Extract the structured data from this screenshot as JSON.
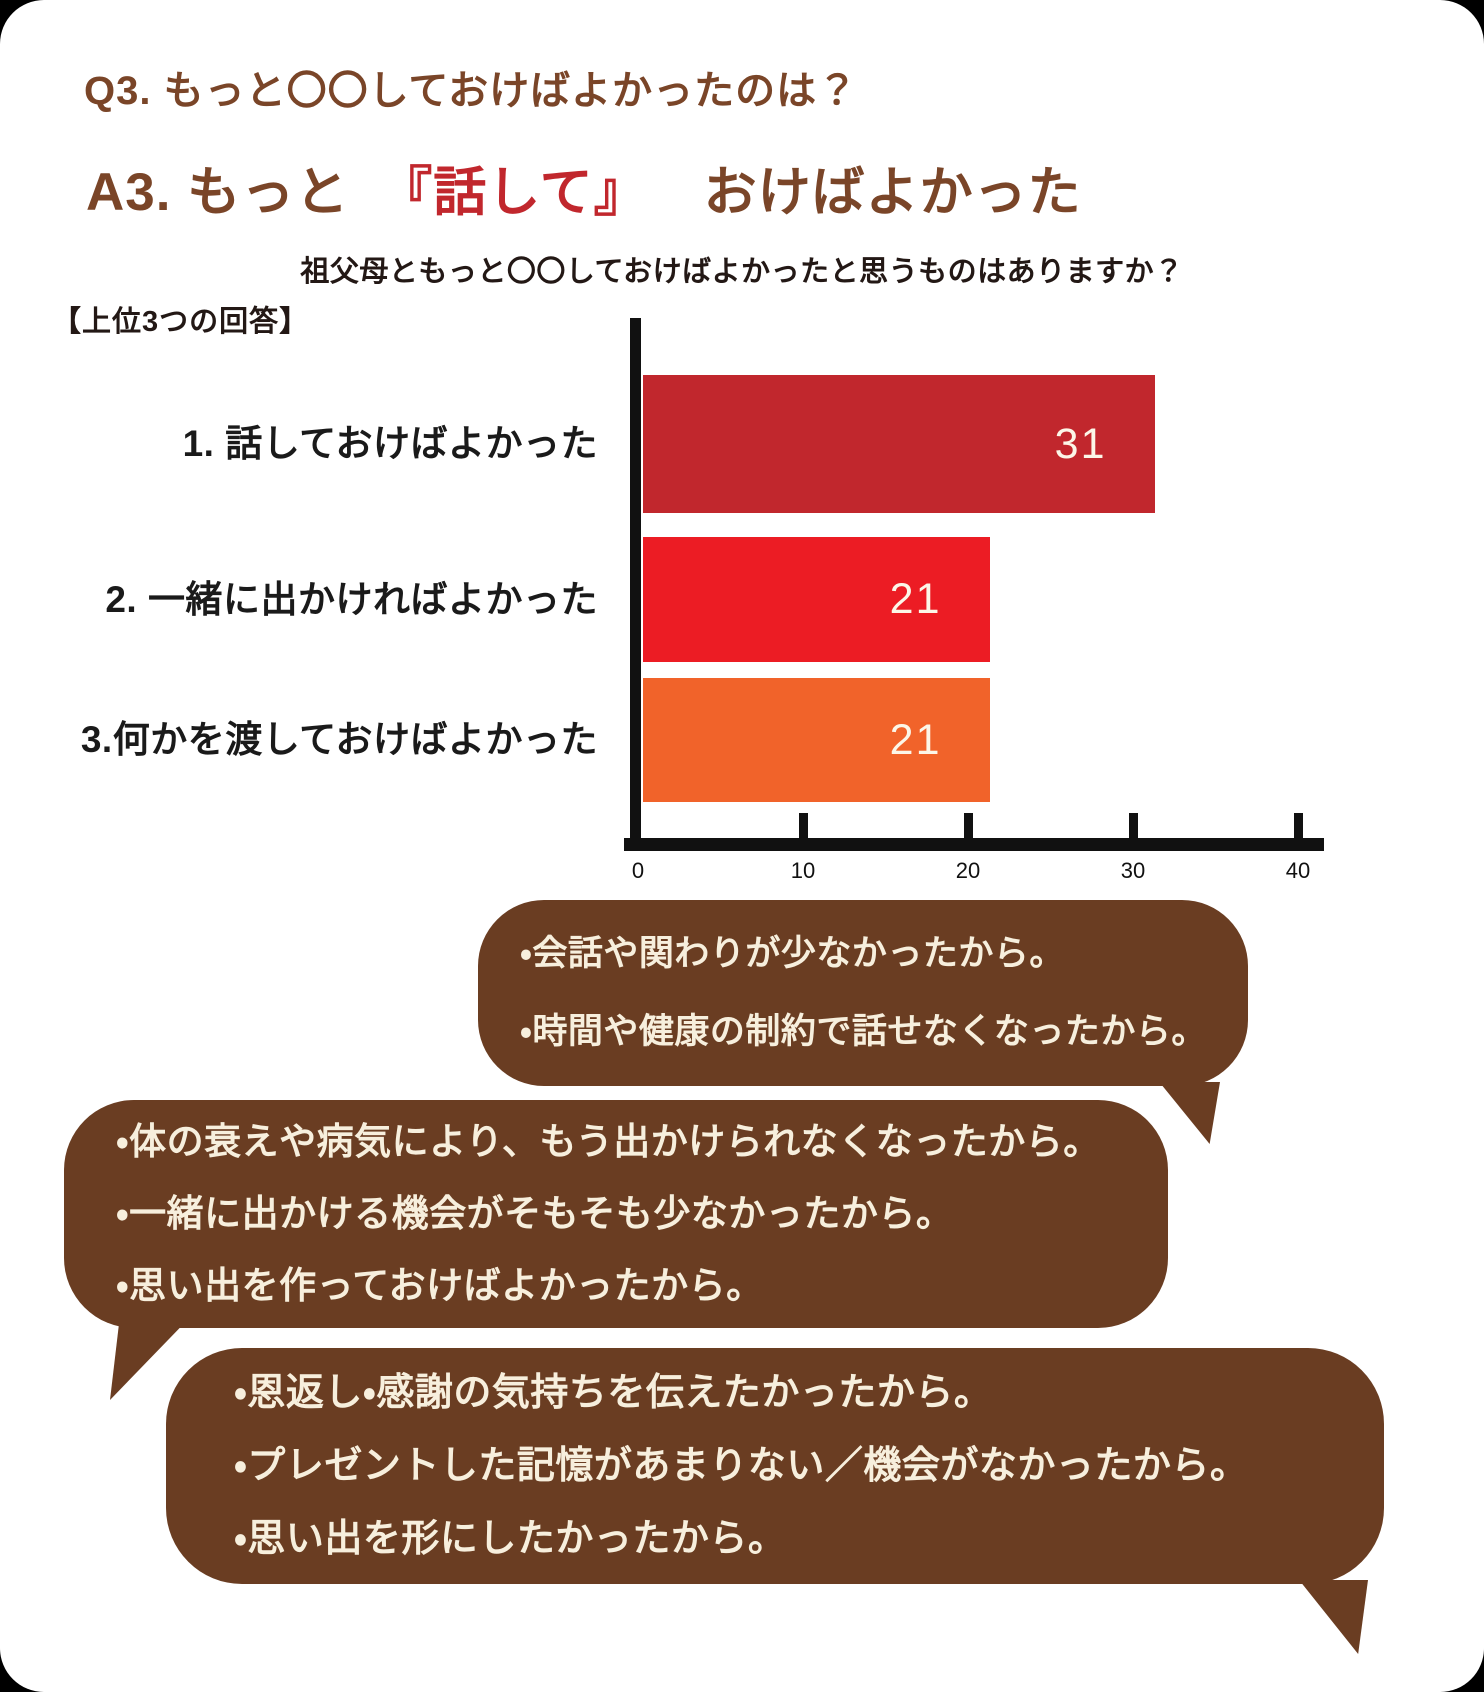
{
  "header": {
    "question": "Q3. もっと〇〇しておけばよかったのは？",
    "answer_prefix": "A3. もっと",
    "answer_highlight": "『話して』",
    "answer_suffix": "おけばよかった"
  },
  "chart_data": {
    "type": "bar",
    "orientation": "horizontal",
    "title": "祖父母ともっと〇〇しておけばよかったと思うものはありますか？",
    "note": "【上位3つの回答】",
    "categories": [
      "1. 話しておけばよかった",
      "2. 一緒に出かければよかった",
      "3.何かを渡しておけばよかった"
    ],
    "values": [
      31,
      21,
      21
    ],
    "bar_colors": [
      "#c1272d",
      "#ec1c24",
      "#f1632a"
    ],
    "xlim": [
      0,
      40
    ],
    "x_ticks": [
      0,
      10,
      20,
      30,
      40
    ],
    "grid": false,
    "legend": false,
    "value_labels_inside_bars": true
  },
  "bubbles": [
    {
      "tail": "bottom-right",
      "lines": [
        "・会話や関わりが少なかったから。",
        "・時間や健康の制約で話せなくなったから。"
      ]
    },
    {
      "tail": "bottom-left",
      "lines": [
        "・体の衰えや病気により、もう出かけられなくなったから。",
        "・一緒に出かける機会がそもそも少なかったから。",
        "・思い出を作っておけばよかったから。"
      ]
    },
    {
      "tail": "bottom-right",
      "lines": [
        "・恩返し・感謝の気持ちを伝えたかったから。",
        "・プレゼントした記憶があまりない／機会がなかったから。",
        "・思い出を形にしたかったから。"
      ]
    }
  ],
  "colors": {
    "heading_brown": "#7a4528",
    "accent_red": "#c1272d",
    "text_dark": "#231815",
    "bubble_brown": "#6a3d22",
    "bubble_text_cream": "#f7efdd",
    "axis_black": "#111111",
    "bar_value_cream": "#fcf6e8",
    "background": "#ffffff"
  }
}
